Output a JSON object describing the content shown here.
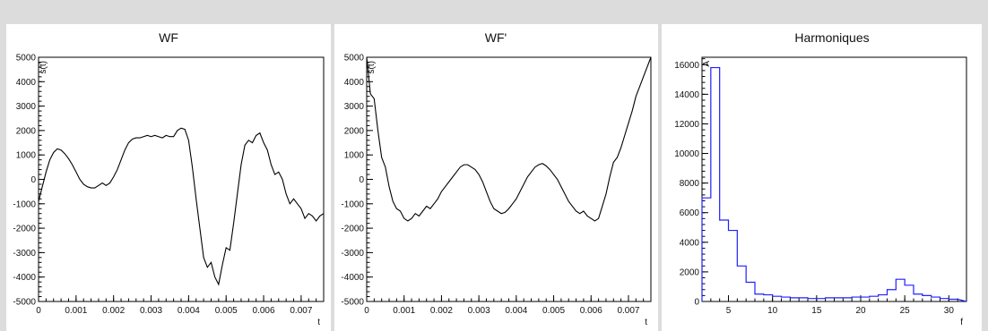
{
  "chart_data": [
    {
      "type": "line",
      "title": "WF",
      "xlabel": "t",
      "ylabel": "s(t)",
      "xlim": [
        0,
        0.0076
      ],
      "ylim": [
        -5000,
        5000
      ],
      "x_ticks": [
        "0",
        "0.001",
        "0.002",
        "0.003",
        "0.004",
        "0.005",
        "0.006",
        "0.007"
      ],
      "y_ticks": [
        "-5000",
        "-4000",
        "-3000",
        "-2000",
        "-1000",
        "0",
        "1000",
        "2000",
        "3000",
        "4000",
        "5000"
      ],
      "color": "#000000",
      "series": [
        {
          "x": [
            0,
            0.0001,
            0.0002,
            0.0003,
            0.0004,
            0.0005,
            0.0006,
            0.0007,
            0.0008,
            0.0009,
            0.001,
            0.0011,
            0.0012,
            0.0013,
            0.0014,
            0.0015,
            0.0016,
            0.0017,
            0.0018,
            0.0019,
            0.002,
            0.0021,
            0.0022,
            0.0023,
            0.0024,
            0.0025,
            0.0026,
            0.0027,
            0.0028,
            0.0029,
            0.003,
            0.0031,
            0.0032,
            0.0033,
            0.0034,
            0.0035,
            0.0036,
            0.0037,
            0.0038,
            0.0039,
            0.004,
            0.0041,
            0.0042,
            0.0043,
            0.0044,
            0.0045,
            0.0046,
            0.0047,
            0.0048,
            0.0049,
            0.005,
            0.0051,
            0.0052,
            0.0053,
            0.0054,
            0.0055,
            0.0056,
            0.0057,
            0.0058,
            0.0059,
            0.006,
            0.0061,
            0.0062,
            0.0063,
            0.0064,
            0.0065,
            0.0066,
            0.0067,
            0.0068,
            0.0069,
            0.007,
            0.0071,
            0.0072,
            0.0073,
            0.0074,
            0.0075,
            0.0076
          ],
          "values": [
            -900,
            -300,
            300,
            800,
            1100,
            1250,
            1200,
            1050,
            850,
            600,
            300,
            0,
            -200,
            -300,
            -350,
            -350,
            -250,
            -150,
            -250,
            -150,
            100,
            400,
            800,
            1200,
            1500,
            1650,
            1700,
            1700,
            1750,
            1800,
            1750,
            1800,
            1750,
            1700,
            1800,
            1750,
            1750,
            2000,
            2100,
            2050,
            1600,
            500,
            -800,
            -2000,
            -3200,
            -3600,
            -3400,
            -4000,
            -4300,
            -3500,
            -2800,
            -2900,
            -1800,
            -600,
            600,
            1400,
            1600,
            1500,
            1800,
            1900,
            1500,
            1200,
            600,
            200,
            300,
            0,
            -600,
            -1000,
            -800,
            -1000,
            -1200,
            -1600,
            -1400,
            -1500,
            -1700,
            -1500,
            -1400
          ]
        }
      ]
    },
    {
      "type": "line",
      "title": "WF'",
      "xlabel": "t",
      "ylabel": "s(t)",
      "xlim": [
        0,
        0.0076
      ],
      "ylim": [
        -5000,
        5000
      ],
      "x_ticks": [
        "0",
        "0.001",
        "0.002",
        "0.003",
        "0.004",
        "0.005",
        "0.006",
        "0.007"
      ],
      "y_ticks": [
        "-5000",
        "-4000",
        "-3000",
        "-2000",
        "-1000",
        "0",
        "1000",
        "2000",
        "3000",
        "4000",
        "5000"
      ],
      "color": "#000000",
      "series": [
        {
          "x": [
            0,
            0.0001,
            0.0002,
            0.0003,
            0.0004,
            0.0005,
            0.0006,
            0.0007,
            0.0008,
            0.0009,
            0.001,
            0.0011,
            0.0012,
            0.0013,
            0.0014,
            0.0015,
            0.0016,
            0.0017,
            0.0018,
            0.0019,
            0.002,
            0.0021,
            0.0022,
            0.0023,
            0.0024,
            0.0025,
            0.0026,
            0.0027,
            0.0028,
            0.0029,
            0.003,
            0.0031,
            0.0032,
            0.0033,
            0.0034,
            0.0035,
            0.0036,
            0.0037,
            0.0038,
            0.0039,
            0.004,
            0.0041,
            0.0042,
            0.0043,
            0.0044,
            0.0045,
            0.0046,
            0.0047,
            0.0048,
            0.0049,
            0.005,
            0.0051,
            0.0052,
            0.0053,
            0.0054,
            0.0055,
            0.0056,
            0.0057,
            0.0058,
            0.0059,
            0.006,
            0.0061,
            0.0062,
            0.0063,
            0.0064,
            0.0065,
            0.0066,
            0.0067,
            0.0068,
            0.0069,
            0.007,
            0.0071,
            0.0072,
            0.0073,
            0.0074,
            0.0075,
            0.0076
          ],
          "values": [
            5000,
            3500,
            3300,
            2000,
            900,
            500,
            -300,
            -900,
            -1200,
            -1300,
            -1600,
            -1700,
            -1600,
            -1400,
            -1500,
            -1300,
            -1100,
            -1200,
            -1000,
            -800,
            -500,
            -300,
            -100,
            100,
            300,
            500,
            600,
            600,
            500,
            400,
            200,
            -100,
            -500,
            -900,
            -1200,
            -1300,
            -1400,
            -1350,
            -1200,
            -1000,
            -800,
            -500,
            -200,
            100,
            300,
            500,
            600,
            650,
            550,
            400,
            200,
            0,
            -300,
            -600,
            -900,
            -1100,
            -1300,
            -1400,
            -1300,
            -1500,
            -1600,
            -1700,
            -1600,
            -1100,
            -600,
            100,
            700,
            900,
            1300,
            1800,
            2300,
            2800,
            3400,
            3800,
            4200,
            4600,
            5000
          ]
        }
      ]
    },
    {
      "type": "bar",
      "title": "Harmoniques",
      "xlabel": "f",
      "ylabel": "A",
      "xlim": [
        2,
        32
      ],
      "ylim": [
        0,
        16500
      ],
      "x_ticks": [
        "5",
        "10",
        "15",
        "20",
        "25",
        "30"
      ],
      "y_ticks": [
        "0",
        "2000",
        "4000",
        "6000",
        "8000",
        "10000",
        "12000",
        "14000",
        "16000"
      ],
      "color": "#2020ff",
      "bin_edges": [
        2,
        3,
        4,
        5,
        6,
        7,
        8,
        9,
        10,
        11,
        12,
        13,
        14,
        15,
        16,
        17,
        18,
        19,
        20,
        21,
        22,
        23,
        24,
        25,
        26,
        27,
        28,
        29,
        30,
        31
      ],
      "values": [
        7000,
        15800,
        5500,
        4800,
        2400,
        1300,
        500,
        450,
        350,
        300,
        250,
        250,
        200,
        200,
        250,
        250,
        250,
        300,
        300,
        350,
        450,
        800,
        1500,
        1100,
        500,
        400,
        300,
        200,
        150
      ]
    }
  ]
}
